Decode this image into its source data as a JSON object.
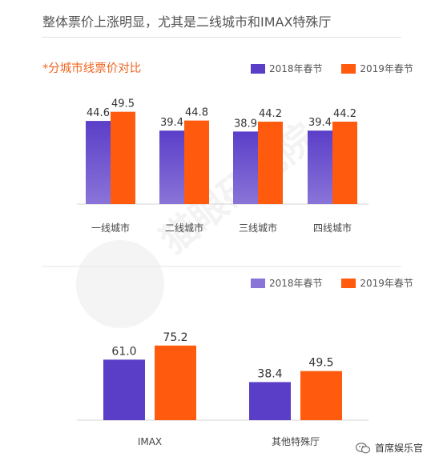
{
  "headline": "整体票价上涨明显，尤其是二线城市和IMAX特殊厅",
  "watermark": "猫眼研究院",
  "brand": {
    "name": "首席娱乐官",
    "icon": "wechat-icon"
  },
  "colors": {
    "y2018_top": "#5b3ec8",
    "y2018_bottom": "#8a74d8",
    "y2019": "#ff5a0e",
    "title_accent": "#f06520"
  },
  "chart_data": [
    {
      "type": "bar",
      "title": "*分城市线票价对比",
      "categories": [
        "一线城市",
        "二线城市",
        "三线城市",
        "四线城市"
      ],
      "series": [
        {
          "name": "2018年春节",
          "values": [
            44.6,
            39.4,
            38.9,
            39.4
          ]
        },
        {
          "name": "2019年春节",
          "values": [
            49.5,
            44.8,
            44.2,
            44.2
          ]
        }
      ],
      "legend": "top-right",
      "grid": false
    },
    {
      "type": "bar",
      "title": "",
      "categories": [
        "IMAX",
        "其他特殊厅"
      ],
      "series": [
        {
          "name": "2018年春节",
          "values": [
            61.0,
            38.4
          ]
        },
        {
          "name": "2019年春节",
          "values": [
            75.2,
            49.5
          ]
        }
      ],
      "legend": "top-right",
      "grid": false
    }
  ]
}
